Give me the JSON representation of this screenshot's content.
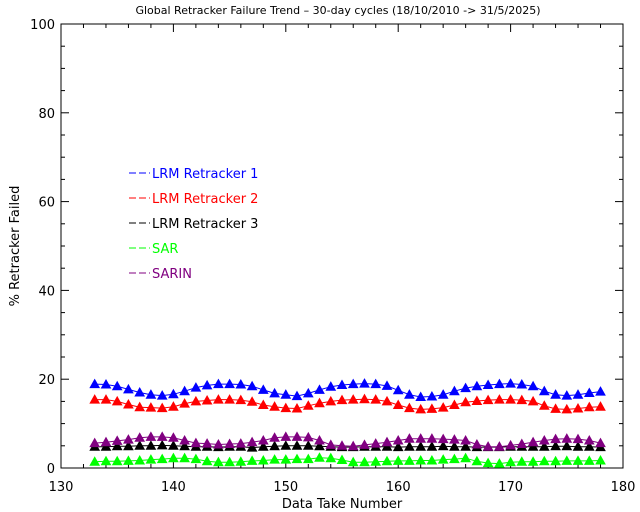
{
  "chart_data": {
    "type": "line",
    "title": "Global Retracker Failure Trend – 30-day cycles (18/10/2010 -> 31/5/2025)",
    "xlabel": "Data Take Number",
    "ylabel": "% Retracker Failed",
    "xlim": [
      130,
      180
    ],
    "ylim": [
      0,
      100
    ],
    "xticks": [
      130,
      140,
      150,
      160,
      170,
      180
    ],
    "yticks": [
      0,
      20,
      40,
      60,
      80,
      100
    ],
    "grid": false,
    "legend_placement": "left-middle",
    "x": [
      133,
      134,
      135,
      136,
      137,
      138,
      139,
      140,
      141,
      142,
      143,
      144,
      145,
      146,
      147,
      148,
      149,
      150,
      151,
      152,
      153,
      154,
      155,
      156,
      157,
      158,
      159,
      160,
      161,
      162,
      163,
      164,
      165,
      166,
      167,
      168,
      169,
      170,
      171,
      172,
      173,
      174,
      175,
      176,
      177,
      178
    ],
    "series": [
      {
        "name": "LRM Retracker 1",
        "color": "#0000ff",
        "values": [
          18.9,
          18.8,
          18.4,
          17.7,
          17.0,
          16.5,
          16.3,
          16.6,
          17.3,
          18.1,
          18.6,
          18.9,
          18.9,
          18.8,
          18.4,
          17.6,
          16.8,
          16.5,
          16.2,
          16.8,
          17.6,
          18.3,
          18.7,
          18.9,
          19.0,
          18.9,
          18.5,
          17.5,
          16.5,
          16.0,
          16.1,
          16.5,
          17.3,
          18.0,
          18.4,
          18.7,
          18.9,
          19.0,
          18.8,
          18.4,
          17.3,
          16.5,
          16.3,
          16.5,
          16.9,
          17.2
        ]
      },
      {
        "name": "LRM Retracker 2",
        "color": "#ff0000",
        "values": [
          15.4,
          15.4,
          15.0,
          14.3,
          13.7,
          13.6,
          13.5,
          13.8,
          14.5,
          15.0,
          15.2,
          15.4,
          15.4,
          15.3,
          14.9,
          14.2,
          13.8,
          13.5,
          13.4,
          14.0,
          14.6,
          15.0,
          15.3,
          15.4,
          15.5,
          15.4,
          15.0,
          14.2,
          13.5,
          13.2,
          13.3,
          13.6,
          14.2,
          14.8,
          15.1,
          15.3,
          15.4,
          15.4,
          15.3,
          15.0,
          14.0,
          13.3,
          13.2,
          13.4,
          13.7,
          13.8
        ]
      },
      {
        "name": "LRM Retracker 3",
        "color": "#000000",
        "values": [
          4.8,
          4.8,
          4.9,
          4.9,
          5.0,
          5.0,
          5.1,
          5.0,
          4.9,
          4.8,
          4.8,
          4.7,
          4.8,
          4.8,
          4.6,
          4.8,
          4.9,
          5.0,
          5.0,
          5.0,
          4.9,
          4.8,
          4.7,
          4.7,
          4.8,
          4.8,
          4.8,
          4.7,
          4.8,
          4.8,
          4.8,
          4.9,
          4.8,
          4.8,
          4.7,
          4.7,
          4.7,
          4.8,
          4.8,
          4.8,
          4.8,
          4.9,
          4.9,
          4.8,
          4.8,
          4.7
        ]
      },
      {
        "name": "SAR",
        "color": "#00ff00",
        "values": [
          1.4,
          1.5,
          1.5,
          1.6,
          1.7,
          1.9,
          2.0,
          2.2,
          2.2,
          2.0,
          1.5,
          1.3,
          1.3,
          1.4,
          1.6,
          1.7,
          1.9,
          1.9,
          2.0,
          2.0,
          2.3,
          2.2,
          1.8,
          1.3,
          1.3,
          1.4,
          1.5,
          1.6,
          1.6,
          1.7,
          1.7,
          1.9,
          2.0,
          2.2,
          1.5,
          1.1,
          1.0,
          1.3,
          1.4,
          1.4,
          1.5,
          1.5,
          1.6,
          1.6,
          1.6,
          1.7
        ]
      },
      {
        "name": "SARIN",
        "color": "#800080",
        "values": [
          5.6,
          5.8,
          6.1,
          6.4,
          6.8,
          7.0,
          7.0,
          6.8,
          6.2,
          5.6,
          5.5,
          5.3,
          5.4,
          5.5,
          5.8,
          6.2,
          6.8,
          7.0,
          7.0,
          6.9,
          6.2,
          5.2,
          5.0,
          4.9,
          5.2,
          5.5,
          5.8,
          6.2,
          6.6,
          6.6,
          6.6,
          6.5,
          6.4,
          6.2,
          5.3,
          4.8,
          4.8,
          5.1,
          5.4,
          5.8,
          6.2,
          6.5,
          6.6,
          6.5,
          6.2,
          5.6
        ]
      }
    ]
  }
}
